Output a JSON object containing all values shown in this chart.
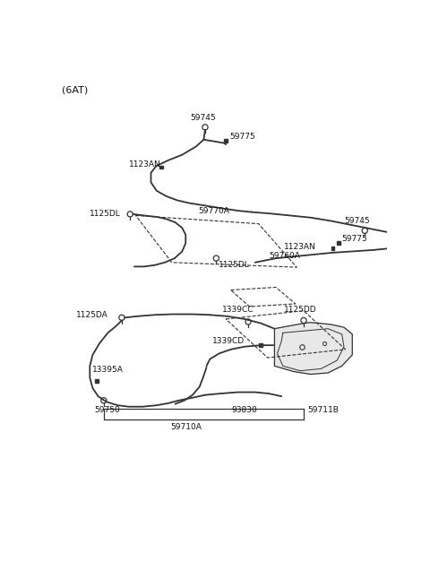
{
  "title": "(6AT)",
  "bg_color": "#ffffff",
  "line_color": "#333333",
  "text_color": "#111111",
  "fig_width": 4.8,
  "fig_height": 6.56,
  "dpi": 100,
  "xlim": [
    0,
    480
  ],
  "ylim": [
    0,
    656
  ]
}
